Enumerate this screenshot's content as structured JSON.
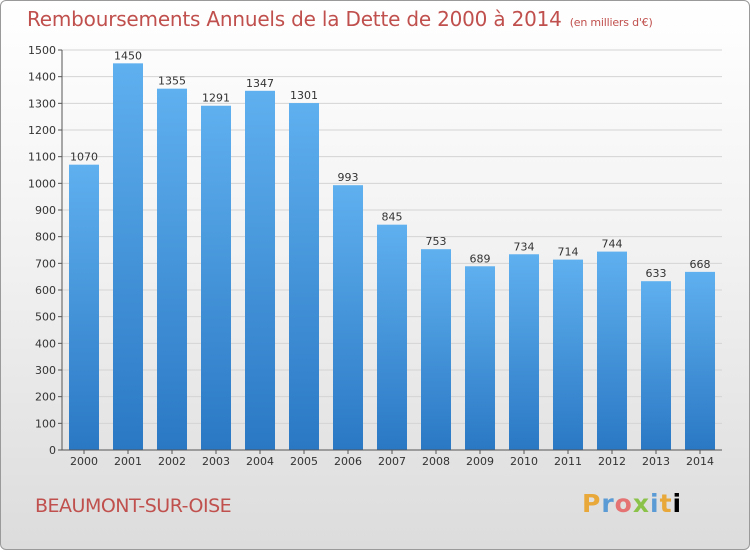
{
  "chart_data": {
    "type": "bar",
    "title": "Remboursements Annuels de la Dette de 2000 à 2014",
    "subtitle": "(en milliers d'€)",
    "categories": [
      "2000",
      "2001",
      "2002",
      "2003",
      "2004",
      "2005",
      "2006",
      "2007",
      "2008",
      "2009",
      "2010",
      "2011",
      "2012",
      "2013",
      "2014"
    ],
    "values": [
      1070,
      1450,
      1355,
      1291,
      1347,
      1301,
      993,
      845,
      753,
      689,
      734,
      714,
      744,
      633,
      668
    ],
    "ylim": [
      0,
      1500
    ],
    "yticks": [
      0,
      100,
      200,
      300,
      400,
      500,
      600,
      700,
      800,
      900,
      1000,
      1100,
      1200,
      1300,
      1400,
      1500
    ],
    "grid": true,
    "bar_color": "#4a9be0",
    "legend": "none"
  },
  "footer": {
    "city": "BEAUMONT-SUR-OISE",
    "logo_letters": [
      "P",
      "r",
      "o",
      "x",
      "i",
      "t",
      "i"
    ]
  }
}
